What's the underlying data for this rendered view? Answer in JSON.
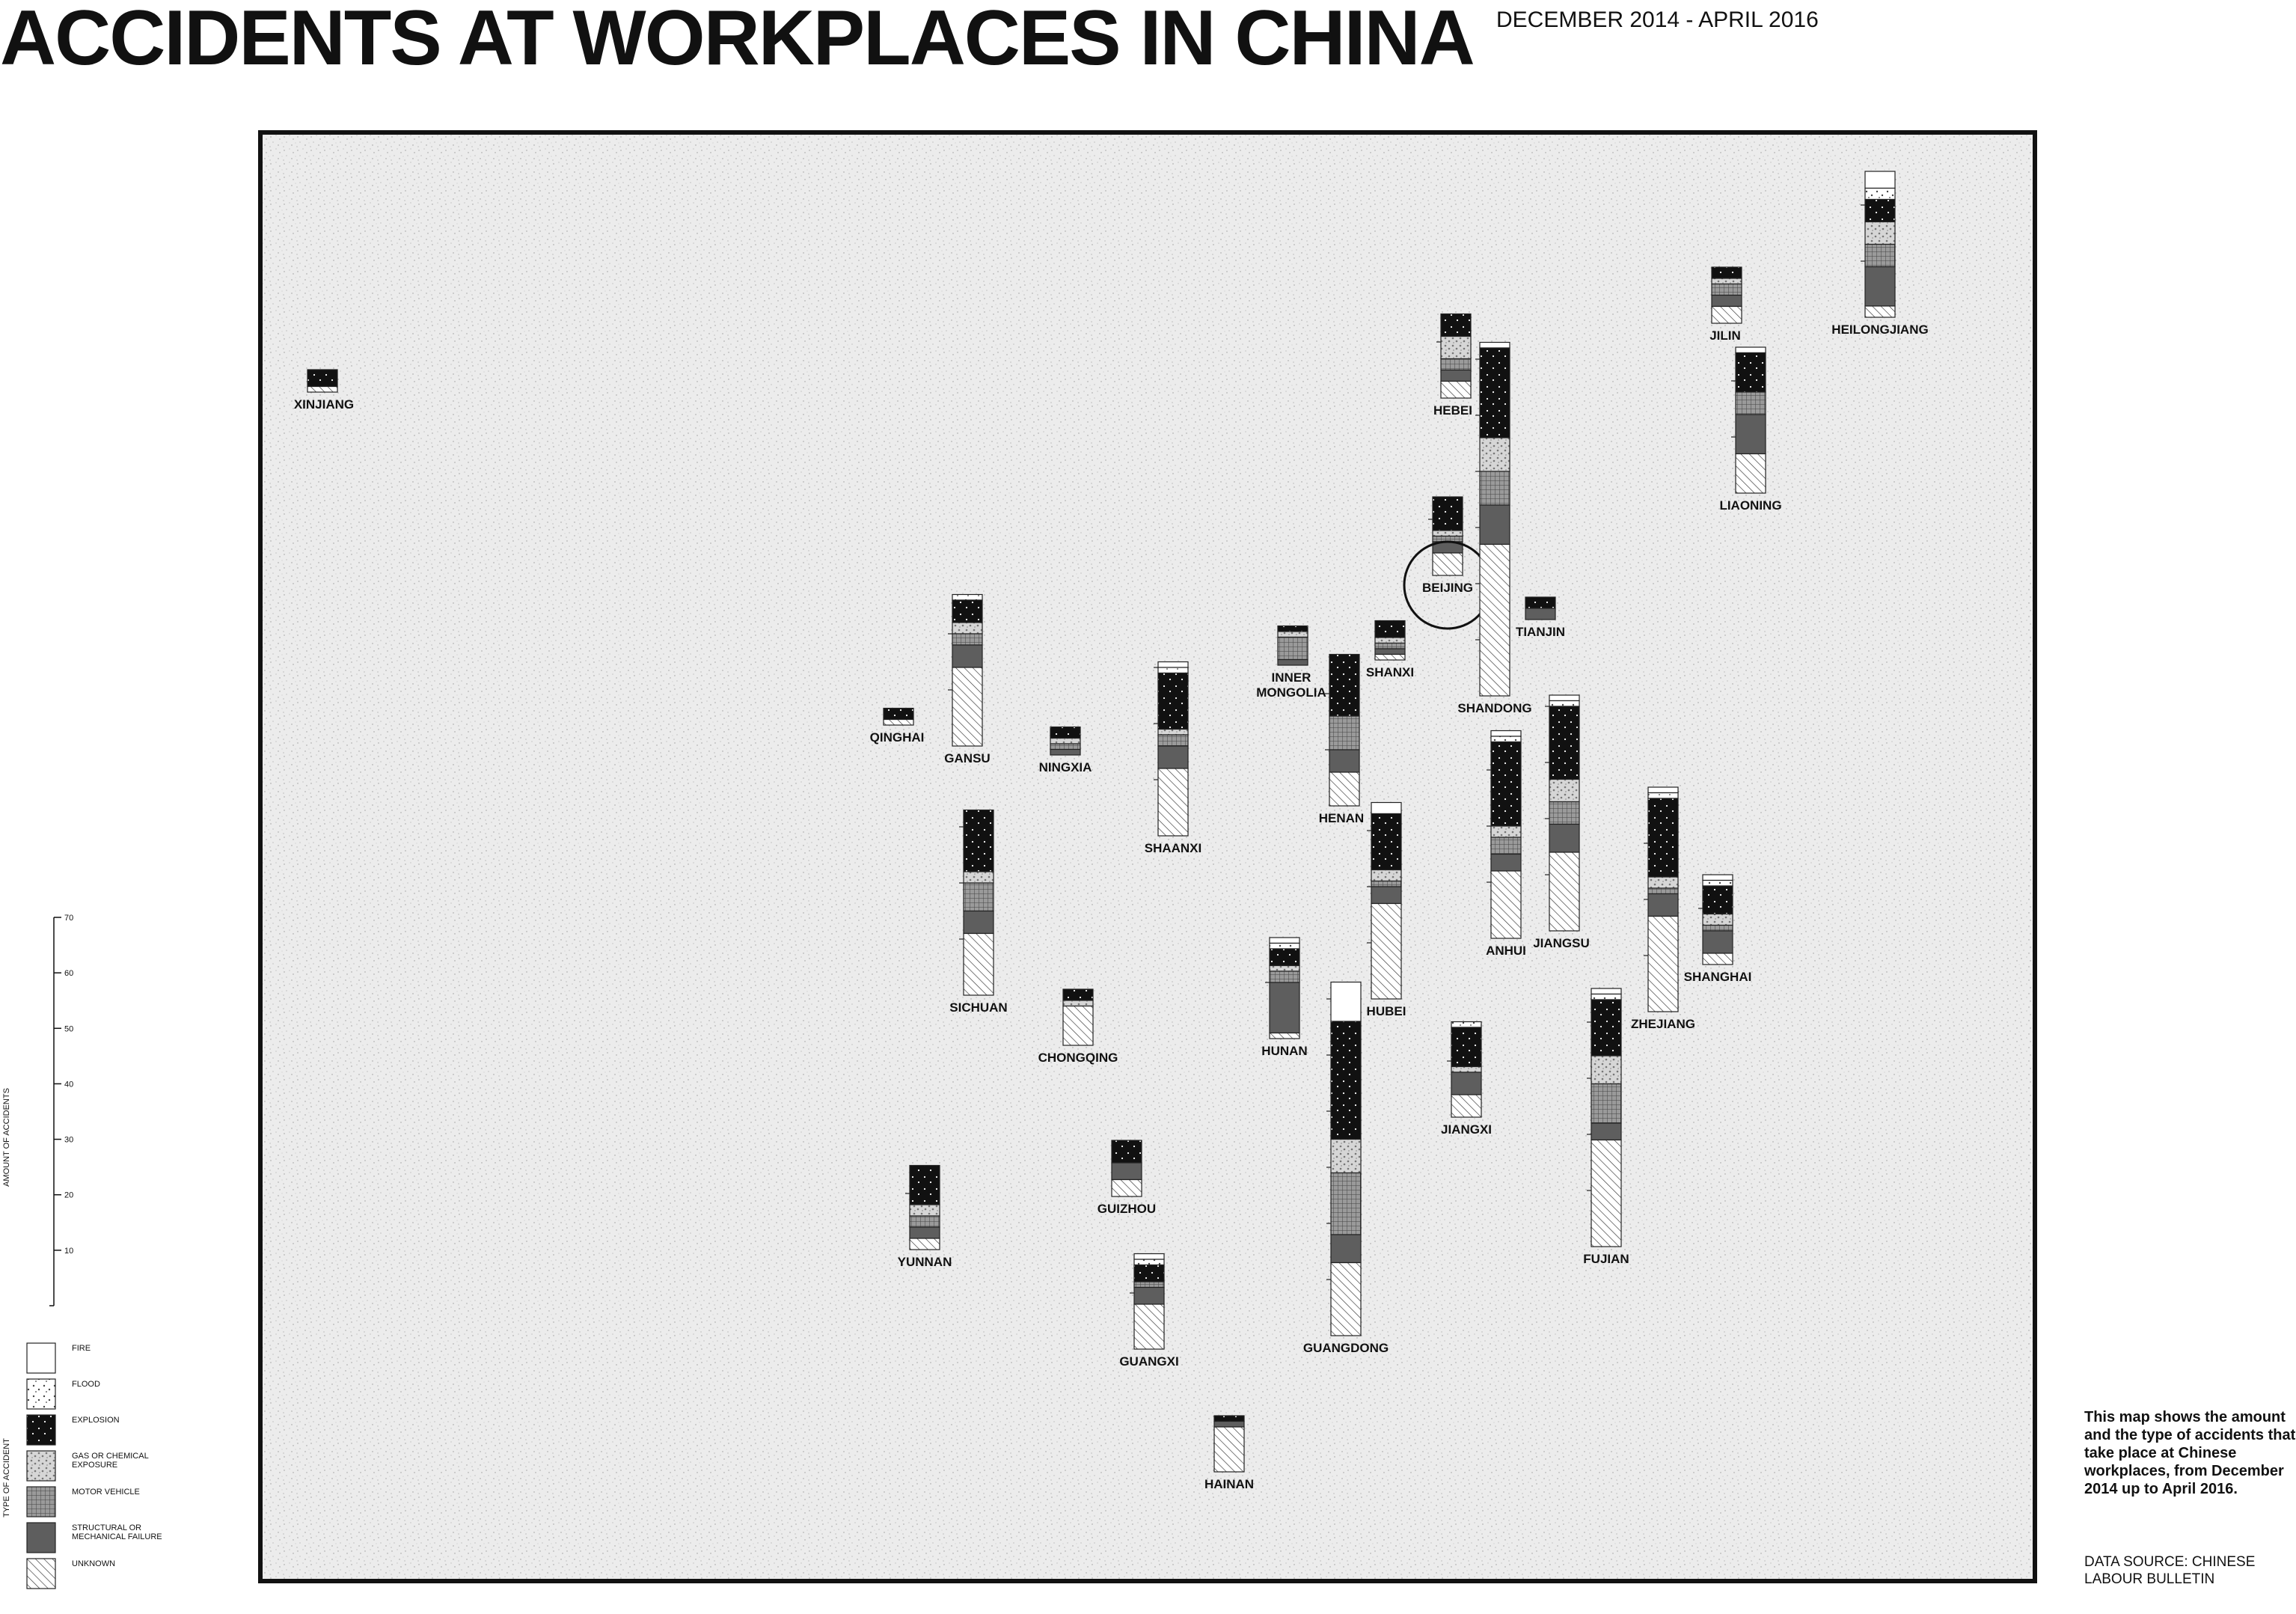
{
  "header": {
    "title": "ACCIDENTS AT WORKPLACES IN CHINA",
    "subtitle": "DECEMBER 2014 - APRIL 2016"
  },
  "description": "This map shows the amount and the type of accidents that take place at Chinese workplaces, from December 2014 up to April 2016.",
  "source": "DATA SOURCE: CHINESE LABOUR BULLETIN",
  "scale": {
    "title": "AMOUNT OF ACCIDENTS",
    "ticks": [
      10,
      20,
      30,
      40,
      50,
      60,
      70
    ]
  },
  "legend": {
    "title": "TYPE OF ACCIDENT",
    "items": [
      {
        "key": "fire",
        "label": "FIRE"
      },
      {
        "key": "flood",
        "label": "FLOOD"
      },
      {
        "key": "explosion",
        "label": "EXPLOSION"
      },
      {
        "key": "gas",
        "label": "GAS OR CHEMICAL EXPOSURE"
      },
      {
        "key": "motor",
        "label": "MOTOR VEHICLE"
      },
      {
        "key": "structural",
        "label": "STRUCTURAL OR MECHANICAL FAILURE"
      },
      {
        "key": "unknown",
        "label": "UNKNOWN"
      }
    ]
  },
  "chart_data": {
    "type": "map-stacked-bars",
    "categories": [
      "fire",
      "flood",
      "explosion",
      "gas",
      "motor",
      "structural",
      "unknown"
    ],
    "highlight": "BEIJING",
    "provinces": [
      {
        "name": "XINJIANG",
        "values": [
          0,
          0,
          3,
          0,
          0,
          0,
          1
        ]
      },
      {
        "name": "QINGHAI",
        "values": [
          0,
          0,
          2,
          0,
          0,
          0,
          1
        ]
      },
      {
        "name": "GANSU",
        "values": [
          0,
          1,
          4,
          2,
          2,
          4,
          14
        ]
      },
      {
        "name": "NINGXIA",
        "values": [
          0,
          0,
          2,
          1,
          1,
          1,
          0
        ]
      },
      {
        "name": "SHAANXI",
        "values": [
          1,
          1,
          10,
          1,
          2,
          4,
          12
        ]
      },
      {
        "name": "INNER MONGOLIA",
        "values": [
          0,
          0,
          1,
          1,
          4,
          1,
          0
        ]
      },
      {
        "name": "SHANXI",
        "values": [
          0,
          0,
          3,
          1,
          1,
          1,
          1
        ]
      },
      {
        "name": "HEBEI",
        "values": [
          0,
          0,
          4,
          4,
          2,
          2,
          3
        ]
      },
      {
        "name": "BEIJING",
        "values": [
          0,
          0,
          6,
          1,
          1,
          2,
          4
        ]
      },
      {
        "name": "TIANJIN",
        "values": [
          0,
          0,
          2,
          0,
          0,
          2,
          0
        ]
      },
      {
        "name": "SHANDONG",
        "values": [
          1,
          0,
          16,
          6,
          6,
          7,
          27
        ]
      },
      {
        "name": "HENAN",
        "values": [
          0,
          0,
          11,
          0,
          6,
          4,
          6
        ]
      },
      {
        "name": "HUBEI",
        "values": [
          2,
          0,
          10,
          2,
          1,
          3,
          17
        ]
      },
      {
        "name": "ANHUI",
        "values": [
          1,
          1,
          15,
          2,
          3,
          3,
          12
        ]
      },
      {
        "name": "JIANGSU",
        "values": [
          1,
          1,
          13,
          4,
          4,
          5,
          14
        ]
      },
      {
        "name": "ZHEJIANG",
        "values": [
          1,
          1,
          14,
          2,
          1,
          4,
          17
        ]
      },
      {
        "name": "SHANGHAI",
        "values": [
          1,
          1,
          5,
          2,
          1,
          4,
          2
        ]
      },
      {
        "name": "JILIN",
        "values": [
          0,
          0,
          2,
          1,
          2,
          2,
          3
        ]
      },
      {
        "name": "LIAONING",
        "values": [
          1,
          0,
          7,
          0,
          4,
          7,
          7
        ]
      },
      {
        "name": "HEILONGJIANG",
        "values": [
          3,
          2,
          4,
          4,
          4,
          7,
          2
        ]
      },
      {
        "name": "SICHUAN",
        "values": [
          0,
          0,
          11,
          2,
          5,
          4,
          11
        ]
      },
      {
        "name": "CHONGQING",
        "values": [
          0,
          0,
          2,
          1,
          0,
          0,
          7
        ]
      },
      {
        "name": "HUNAN",
        "values": [
          1,
          1,
          3,
          1,
          2,
          9,
          1
        ]
      },
      {
        "name": "JIANGXI",
        "values": [
          0,
          1,
          7,
          1,
          0,
          4,
          4
        ]
      },
      {
        "name": "FUJIAN",
        "values": [
          1,
          1,
          10,
          5,
          7,
          3,
          19
        ]
      },
      {
        "name": "YUNNAN",
        "values": [
          0,
          0,
          7,
          2,
          2,
          2,
          2
        ]
      },
      {
        "name": "GUIZHOU",
        "values": [
          0,
          0,
          4,
          0,
          0,
          3,
          3
        ]
      },
      {
        "name": "GUANGXI",
        "values": [
          1,
          1,
          3,
          0,
          1,
          3,
          8
        ]
      },
      {
        "name": "GUANGDONG",
        "values": [
          7,
          0,
          21,
          6,
          11,
          5,
          13
        ]
      },
      {
        "name": "HAINAN",
        "values": [
          0,
          0,
          1,
          0,
          0,
          1,
          8
        ]
      }
    ]
  }
}
